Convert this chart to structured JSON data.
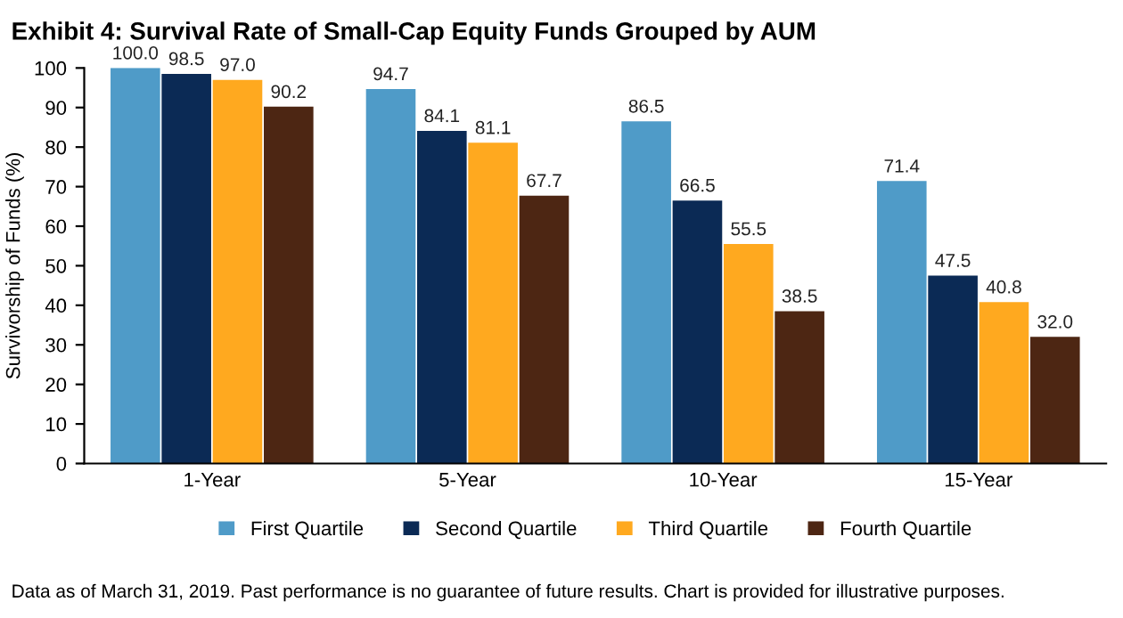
{
  "chart_data": {
    "type": "bar",
    "title": "Exhibit 4: Survival Rate of Small-Cap Equity Funds Grouped by AUM",
    "ylabel": "Survivorship of Funds (%)",
    "categories": [
      "1-Year",
      "5-Year",
      "10-Year",
      "15-Year"
    ],
    "series": [
      {
        "name": "First Quartile",
        "color": "#4f9bc8",
        "values": [
          100.0,
          94.7,
          86.5,
          71.4
        ],
        "value_labels": [
          "100.0",
          "94.7",
          "86.5",
          "71.4"
        ]
      },
      {
        "name": "Second Quartile",
        "color": "#0b2a55",
        "values": [
          98.5,
          84.1,
          66.5,
          47.5
        ],
        "value_labels": [
          "98.5",
          "84.1",
          "66.5",
          "47.5"
        ]
      },
      {
        "name": "Third Quartile",
        "color": "#ffa91f",
        "values": [
          97.0,
          81.1,
          55.5,
          40.8
        ],
        "value_labels": [
          "97.0",
          "81.1",
          "55.5",
          "40.8"
        ]
      },
      {
        "name": "Fourth Quartile",
        "color": "#4d2613",
        "values": [
          90.2,
          67.7,
          38.5,
          32.0
        ],
        "value_labels": [
          "90.2",
          "67.7",
          "38.5",
          "32.0"
        ]
      }
    ],
    "ylim": [
      0,
      100
    ],
    "yticks": [
      0,
      10,
      20,
      30,
      40,
      50,
      60,
      70,
      80,
      90,
      100
    ],
    "grid": false,
    "legend": "bottom",
    "annotations": [
      "Data as of March 31, 2019. Past performance is no guarantee of future results. Chart is provided for illustrative purposes."
    ]
  }
}
